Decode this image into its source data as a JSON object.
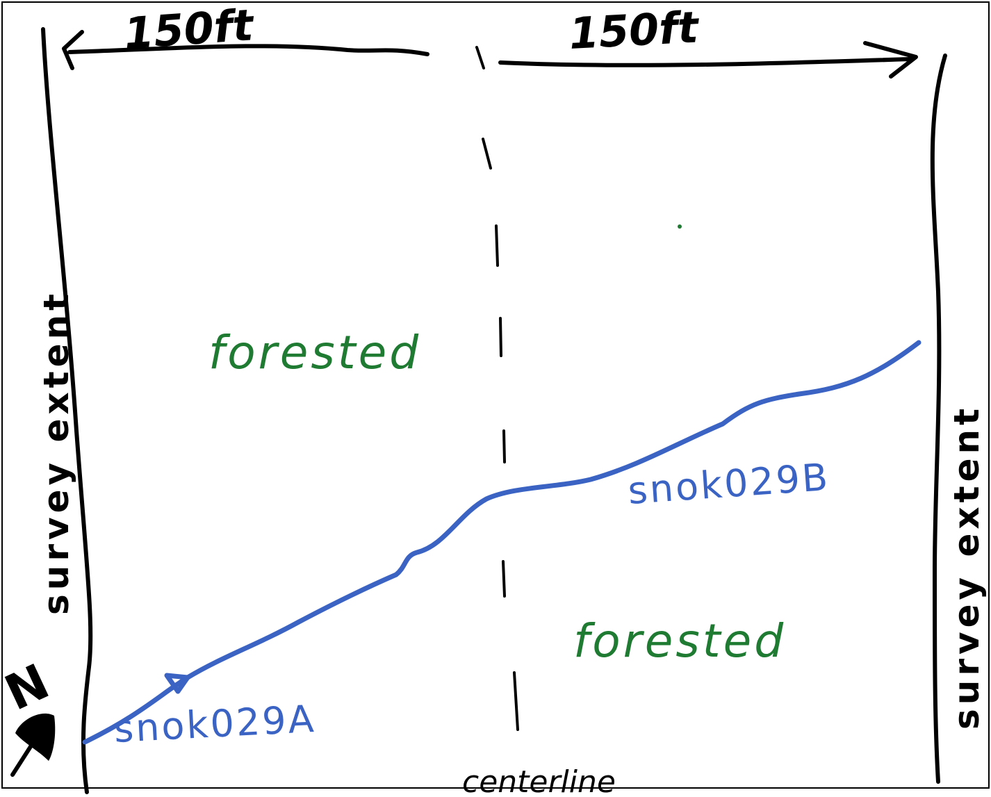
{
  "dimensions": {
    "left_width": "150ft",
    "right_width": "150ft"
  },
  "labels": {
    "survey_extent_left": "survey extent",
    "survey_extent_right": "survey extent",
    "centerline": "centerline"
  },
  "land_cover": {
    "upper_left": "forested",
    "lower_right": "forested"
  },
  "stream": {
    "start_id": "snok029A",
    "end_id": "snok029B"
  },
  "north_arrow": {
    "label": "N"
  },
  "colors": {
    "ink": "#000000",
    "stream": "#3a63c4",
    "land_cover": "#1f7a32"
  }
}
